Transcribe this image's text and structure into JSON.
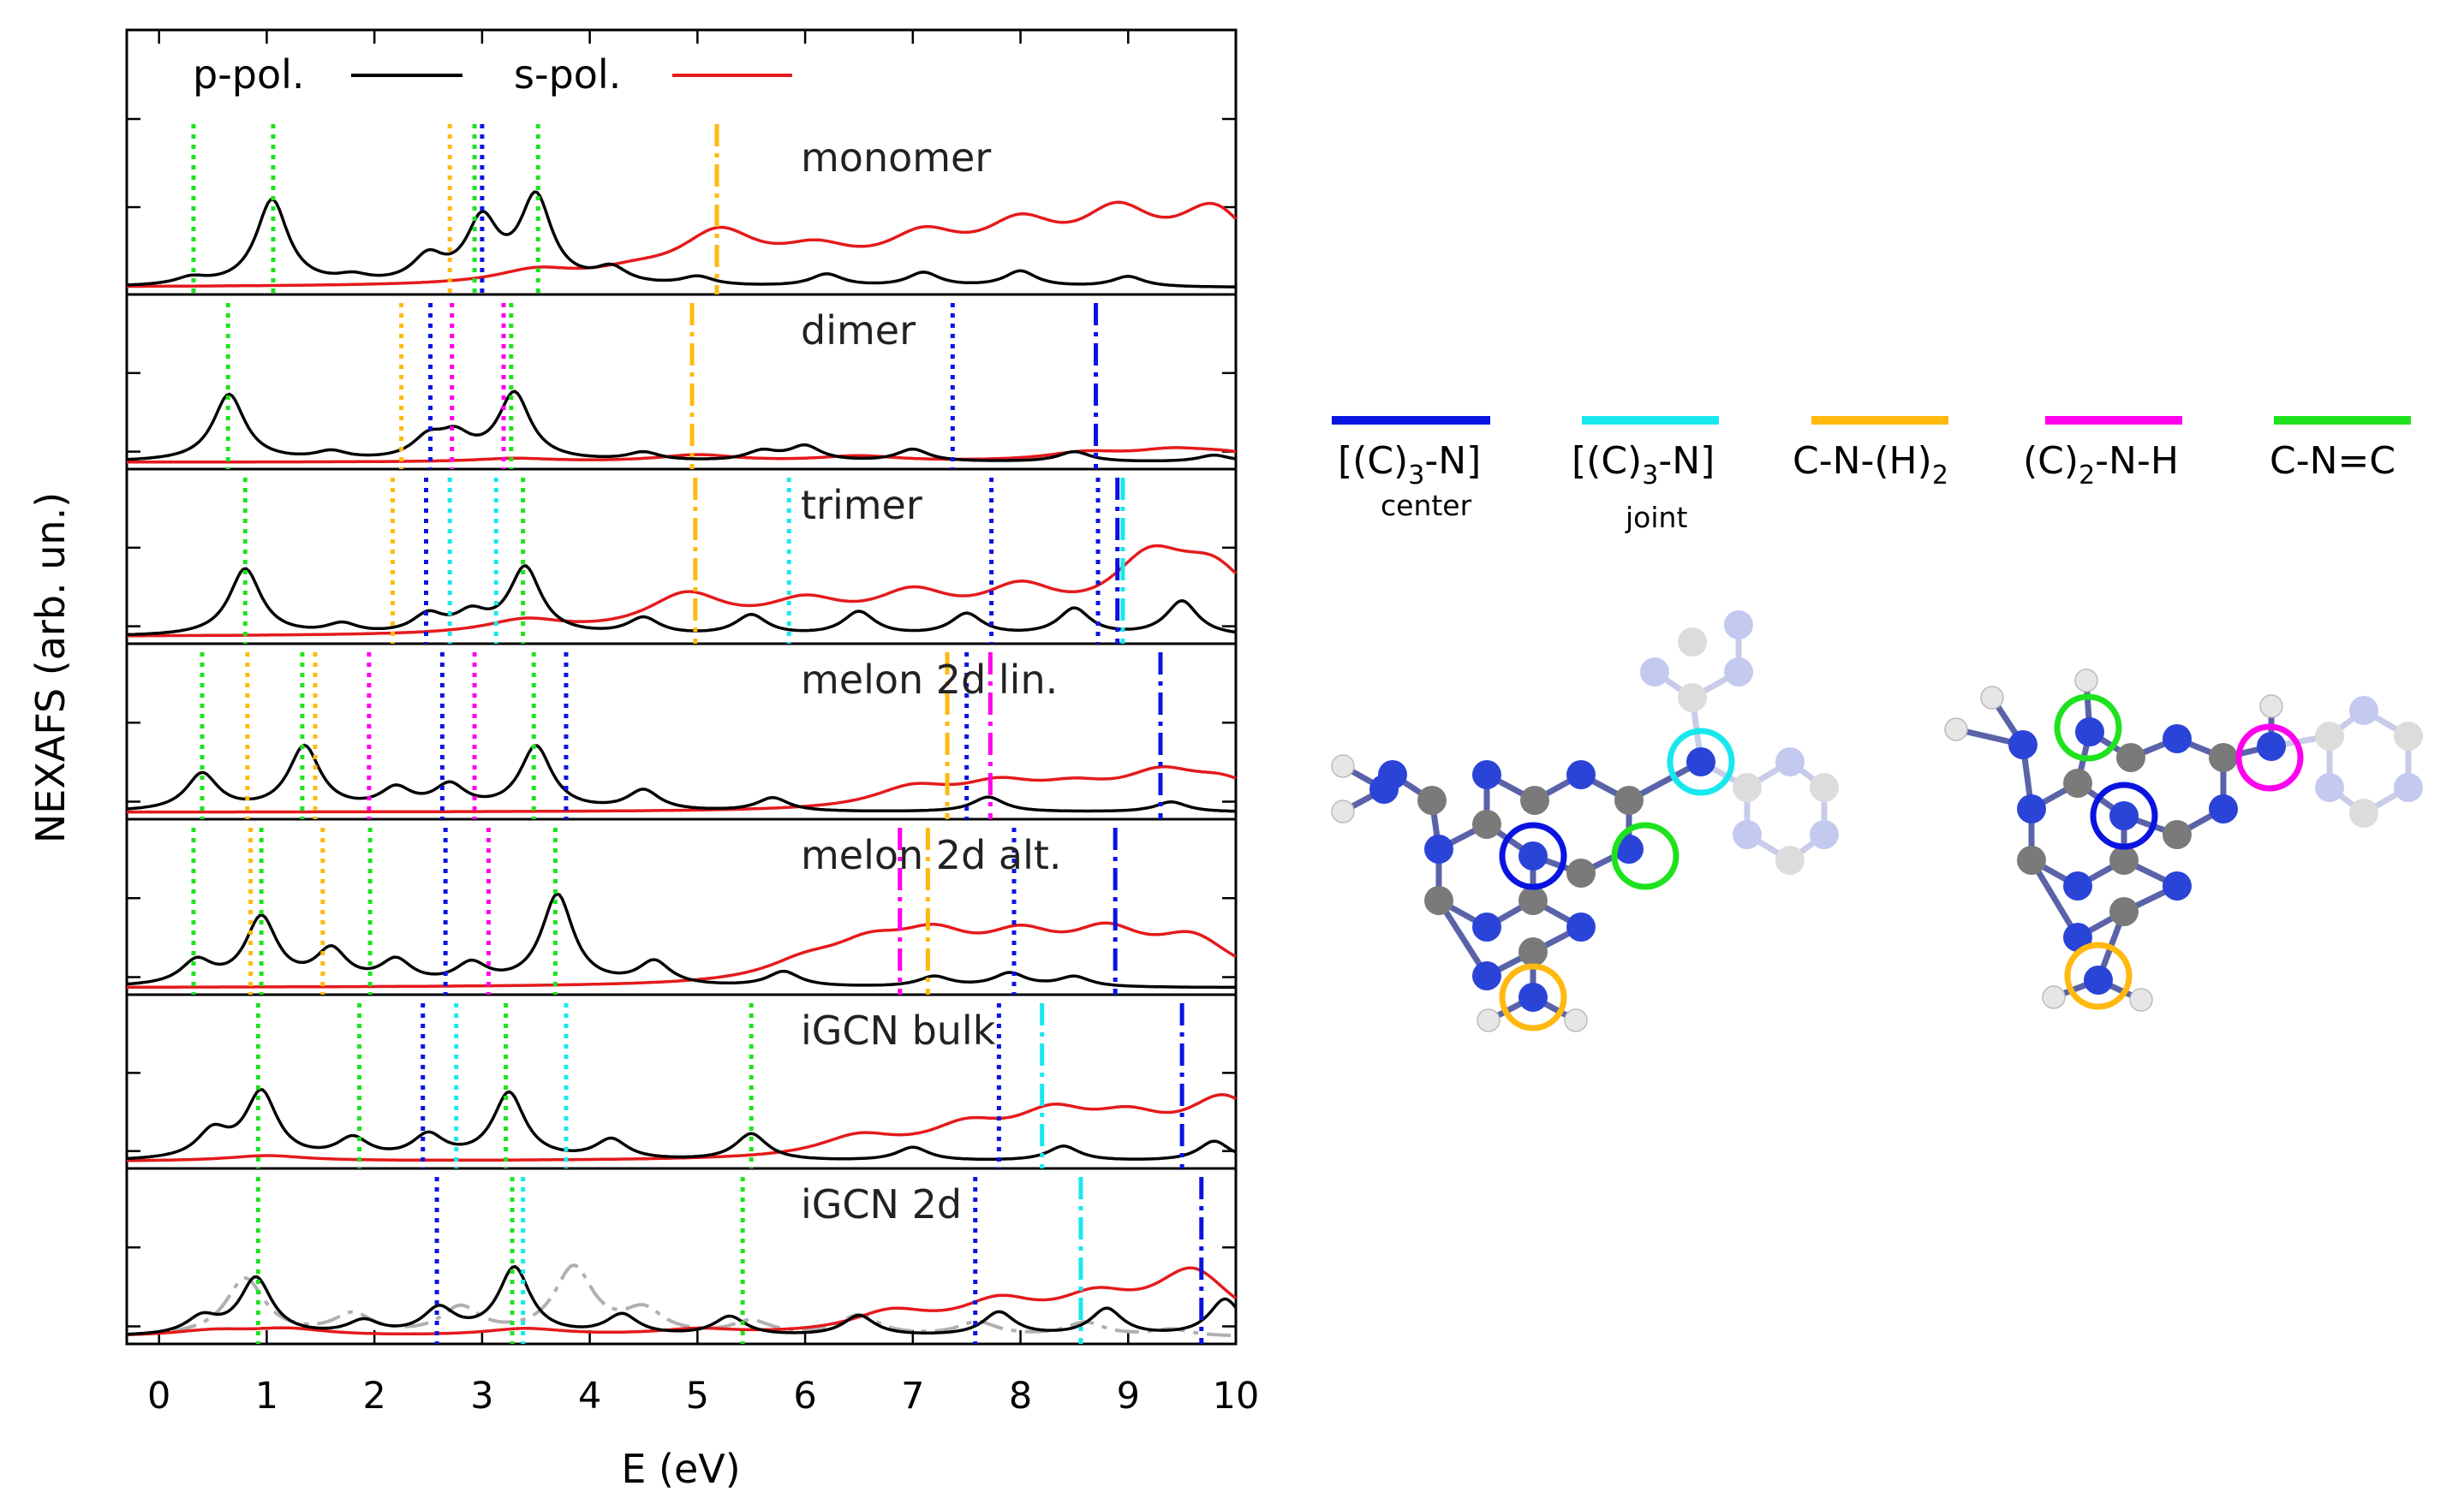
{
  "chart_data": {
    "type": "line",
    "xlabel": "E (eV)",
    "ylabel": "NEXAFS (arb. un.)",
    "xlim": [
      -0.3,
      10
    ],
    "xticks": [
      "0",
      "1",
      "2",
      "3",
      "4",
      "5",
      "6",
      "7",
      "8",
      "9",
      "10"
    ],
    "legend": [
      {
        "name": "p-pol.",
        "color": "#000000"
      },
      {
        "name": "s-pol.",
        "color": "#e41a1c"
      }
    ],
    "panels": [
      {
        "name": "monomer",
        "p_peaks": [
          [
            0.3,
            0.08
          ],
          [
            1.05,
            1.0
          ],
          [
            1.8,
            0.08
          ],
          [
            2.5,
            0.3
          ],
          [
            3.0,
            0.72
          ],
          [
            3.5,
            1.0
          ],
          [
            4.2,
            0.18
          ],
          [
            5.0,
            0.1
          ],
          [
            6.2,
            0.14
          ],
          [
            7.1,
            0.16
          ],
          [
            8.0,
            0.18
          ],
          [
            9.0,
            0.12
          ]
        ],
        "s_peaks": [
          [
            3.5,
            0.15
          ],
          [
            4.4,
            0.1
          ],
          [
            5.2,
            0.55
          ],
          [
            6.1,
            0.3
          ],
          [
            7.1,
            0.45
          ],
          [
            8.0,
            0.55
          ],
          [
            8.9,
            0.68
          ],
          [
            9.8,
            0.78
          ]
        ],
        "markers": [
          {
            "x": 0.32,
            "color": "green",
            "style": "dot"
          },
          {
            "x": 1.06,
            "color": "green",
            "style": "dot"
          },
          {
            "x": 2.7,
            "color": "orange",
            "style": "dot"
          },
          {
            "x": 2.93,
            "color": "green",
            "style": "dot"
          },
          {
            "x": 3.0,
            "color": "blue",
            "style": "dot"
          },
          {
            "x": 3.52,
            "color": "green",
            "style": "dot"
          },
          {
            "x": 5.18,
            "color": "orange",
            "style": "dashdot"
          }
        ]
      },
      {
        "name": "dimer",
        "p_peaks": [
          [
            0.65,
            1.0
          ],
          [
            1.6,
            0.12
          ],
          [
            2.5,
            0.3
          ],
          [
            2.75,
            0.32
          ],
          [
            3.3,
            1.0
          ],
          [
            4.5,
            0.12
          ],
          [
            5.6,
            0.14
          ],
          [
            6.0,
            0.22
          ],
          [
            7.0,
            0.18
          ],
          [
            8.5,
            0.15
          ],
          [
            9.8,
            0.1
          ]
        ],
        "s_peaks": [
          [
            3.3,
            0.05
          ],
          [
            5.0,
            0.1
          ],
          [
            6.5,
            0.08
          ],
          [
            8.6,
            0.12
          ],
          [
            9.4,
            0.14
          ],
          [
            9.9,
            0.1
          ]
        ],
        "markers": [
          {
            "x": 0.64,
            "color": "green",
            "style": "dot"
          },
          {
            "x": 2.25,
            "color": "orange",
            "style": "dot"
          },
          {
            "x": 2.52,
            "color": "blue",
            "style": "dot"
          },
          {
            "x": 2.72,
            "color": "magenta",
            "style": "dot"
          },
          {
            "x": 3.2,
            "color": "magenta",
            "style": "dot"
          },
          {
            "x": 3.27,
            "color": "green",
            "style": "dot"
          },
          {
            "x": 4.95,
            "color": "orange",
            "style": "dashdot"
          },
          {
            "x": 7.37,
            "color": "blue",
            "style": "dot"
          },
          {
            "x": 8.7,
            "color": "blue",
            "style": "dashdot"
          }
        ]
      },
      {
        "name": "trimer",
        "p_peaks": [
          [
            0.8,
            1.0
          ],
          [
            1.7,
            0.15
          ],
          [
            2.5,
            0.28
          ],
          [
            2.9,
            0.28
          ],
          [
            3.4,
            1.0
          ],
          [
            4.5,
            0.25
          ],
          [
            5.5,
            0.3
          ],
          [
            6.5,
            0.35
          ],
          [
            7.5,
            0.32
          ],
          [
            8.5,
            0.4
          ],
          [
            9.5,
            0.52
          ]
        ],
        "s_peaks": [
          [
            3.4,
            0.2
          ],
          [
            4.9,
            0.55
          ],
          [
            6.0,
            0.4
          ],
          [
            7.0,
            0.5
          ],
          [
            8.0,
            0.55
          ],
          [
            9.2,
            0.95
          ],
          [
            9.8,
            0.8
          ]
        ],
        "markers": [
          {
            "x": 0.8,
            "color": "green",
            "style": "dot"
          },
          {
            "x": 2.17,
            "color": "orange",
            "style": "dot"
          },
          {
            "x": 2.48,
            "color": "blue",
            "style": "dot"
          },
          {
            "x": 2.7,
            "color": "cyan",
            "style": "dot"
          },
          {
            "x": 3.13,
            "color": "cyan",
            "style": "dot"
          },
          {
            "x": 3.38,
            "color": "green",
            "style": "dot"
          },
          {
            "x": 4.98,
            "color": "orange",
            "style": "dashdot"
          },
          {
            "x": 5.85,
            "color": "cyan",
            "style": "dot"
          },
          {
            "x": 7.73,
            "color": "blue",
            "style": "dot"
          },
          {
            "x": 8.72,
            "color": "blue",
            "style": "dot"
          },
          {
            "x": 8.9,
            "color": "blue",
            "style": "dashdot"
          },
          {
            "x": 8.95,
            "color": "cyan",
            "style": "dashdot"
          }
        ]
      },
      {
        "name": "melon 2d lin.",
        "p_peaks": [
          [
            0.4,
            0.55
          ],
          [
            1.35,
            0.95
          ],
          [
            2.2,
            0.3
          ],
          [
            2.7,
            0.35
          ],
          [
            3.5,
            0.95
          ],
          [
            4.5,
            0.3
          ],
          [
            5.7,
            0.2
          ],
          [
            7.7,
            0.22
          ],
          [
            9.4,
            0.15
          ]
        ],
        "s_peaks": [
          [
            7.0,
            0.3
          ],
          [
            7.8,
            0.32
          ],
          [
            8.5,
            0.25
          ],
          [
            9.3,
            0.45
          ],
          [
            9.9,
            0.35
          ]
        ],
        "markers": [
          {
            "x": 0.4,
            "color": "green",
            "style": "dot"
          },
          {
            "x": 0.82,
            "color": "orange",
            "style": "dot"
          },
          {
            "x": 1.33,
            "color": "green",
            "style": "dot"
          },
          {
            "x": 1.45,
            "color": "orange",
            "style": "dot"
          },
          {
            "x": 1.95,
            "color": "magenta",
            "style": "dot"
          },
          {
            "x": 2.63,
            "color": "blue",
            "style": "dot"
          },
          {
            "x": 2.93,
            "color": "magenta",
            "style": "dot"
          },
          {
            "x": 3.48,
            "color": "green",
            "style": "dot"
          },
          {
            "x": 3.78,
            "color": "blue",
            "style": "dot"
          },
          {
            "x": 7.32,
            "color": "orange",
            "style": "dashdot"
          },
          {
            "x": 7.5,
            "color": "blue",
            "style": "dot"
          },
          {
            "x": 7.72,
            "color": "magenta",
            "style": "dashdot"
          },
          {
            "x": 9.3,
            "color": "blue",
            "style": "dashdot"
          }
        ]
      },
      {
        "name": "melon 2d alt.",
        "p_peaks": [
          [
            0.35,
            0.35
          ],
          [
            0.95,
            1.0
          ],
          [
            1.6,
            0.5
          ],
          [
            2.2,
            0.35
          ],
          [
            2.9,
            0.3
          ],
          [
            3.7,
            1.35
          ],
          [
            4.6,
            0.35
          ],
          [
            5.8,
            0.22
          ],
          [
            7.2,
            0.15
          ],
          [
            7.9,
            0.2
          ],
          [
            8.5,
            0.15
          ]
        ],
        "s_peaks": [
          [
            6.0,
            0.25
          ],
          [
            6.6,
            0.45
          ],
          [
            7.2,
            0.55
          ],
          [
            8.0,
            0.55
          ],
          [
            8.8,
            0.62
          ],
          [
            9.6,
            0.6
          ]
        ],
        "markers": [
          {
            "x": 0.32,
            "color": "green",
            "style": "dot"
          },
          {
            "x": 0.85,
            "color": "orange",
            "style": "dot"
          },
          {
            "x": 0.95,
            "color": "green",
            "style": "dot"
          },
          {
            "x": 1.52,
            "color": "orange",
            "style": "dot"
          },
          {
            "x": 1.96,
            "color": "green",
            "style": "dot"
          },
          {
            "x": 2.66,
            "color": "blue",
            "style": "dot"
          },
          {
            "x": 3.06,
            "color": "magenta",
            "style": "dot"
          },
          {
            "x": 3.68,
            "color": "green",
            "style": "dot"
          },
          {
            "x": 6.88,
            "color": "magenta",
            "style": "dashdot"
          },
          {
            "x": 7.14,
            "color": "orange",
            "style": "dashdot"
          },
          {
            "x": 7.94,
            "color": "blue",
            "style": "dot"
          },
          {
            "x": 8.88,
            "color": "blue",
            "style": "dashdot"
          }
        ]
      },
      {
        "name": "iGCN bulk",
        "p_peaks": [
          [
            0.5,
            0.4
          ],
          [
            0.95,
            1.0
          ],
          [
            1.8,
            0.3
          ],
          [
            2.5,
            0.35
          ],
          [
            3.25,
            1.0
          ],
          [
            4.2,
            0.3
          ],
          [
            5.5,
            0.4
          ],
          [
            7.0,
            0.2
          ],
          [
            8.4,
            0.22
          ],
          [
            9.8,
            0.3
          ]
        ],
        "s_peaks": [
          [
            1.0,
            0.08
          ],
          [
            6.5,
            0.3
          ],
          [
            7.5,
            0.4
          ],
          [
            8.3,
            0.55
          ],
          [
            9.0,
            0.45
          ],
          [
            9.9,
            0.85
          ]
        ],
        "markers": [
          {
            "x": 0.92,
            "color": "green",
            "style": "dot"
          },
          {
            "x": 1.86,
            "color": "green",
            "style": "dot"
          },
          {
            "x": 2.45,
            "color": "blue",
            "style": "dot"
          },
          {
            "x": 2.76,
            "color": "cyan",
            "style": "dot"
          },
          {
            "x": 3.22,
            "color": "green",
            "style": "dot"
          },
          {
            "x": 3.78,
            "color": "cyan",
            "style": "dot"
          },
          {
            "x": 5.5,
            "color": "green",
            "style": "dot"
          },
          {
            "x": 7.8,
            "color": "blue",
            "style": "dot"
          },
          {
            "x": 8.2,
            "color": "cyan",
            "style": "dashdot"
          },
          {
            "x": 9.5,
            "color": "blue",
            "style": "dashdot"
          }
        ]
      },
      {
        "name": "iGCN 2d",
        "p_peaks": [
          [
            0.4,
            0.25
          ],
          [
            0.9,
            0.85
          ],
          [
            1.9,
            0.2
          ],
          [
            2.6,
            0.38
          ],
          [
            3.3,
            1.0
          ],
          [
            4.3,
            0.3
          ],
          [
            5.3,
            0.28
          ],
          [
            6.5,
            0.3
          ],
          [
            7.8,
            0.35
          ],
          [
            8.8,
            0.4
          ],
          [
            9.9,
            0.55
          ]
        ],
        "s_peaks": [
          [
            0.5,
            0.08
          ],
          [
            1.2,
            0.1
          ],
          [
            3.4,
            0.1
          ],
          [
            5.0,
            0.08
          ],
          [
            6.8,
            0.3
          ],
          [
            7.8,
            0.42
          ],
          [
            8.7,
            0.45
          ],
          [
            9.6,
            0.9
          ]
        ],
        "ref_peaks": [
          [
            0.8,
            0.85
          ],
          [
            1.8,
            0.3
          ],
          [
            2.8,
            0.4
          ],
          [
            3.85,
            1.0
          ],
          [
            4.5,
            0.35
          ],
          [
            5.5,
            0.2
          ],
          [
            6.5,
            0.3
          ],
          [
            7.6,
            0.2
          ],
          [
            8.6,
            0.2
          ],
          [
            9.4,
            0.1
          ]
        ],
        "markers": [
          {
            "x": 0.92,
            "color": "green",
            "style": "dot"
          },
          {
            "x": 2.58,
            "color": "blue",
            "style": "dot"
          },
          {
            "x": 3.28,
            "color": "green",
            "style": "dot"
          },
          {
            "x": 3.38,
            "color": "cyan",
            "style": "dot"
          },
          {
            "x": 5.42,
            "color": "green",
            "style": "dot"
          },
          {
            "x": 7.58,
            "color": "blue",
            "style": "dot"
          },
          {
            "x": 8.56,
            "color": "cyan",
            "style": "dashdot"
          },
          {
            "x": 9.68,
            "color": "blue",
            "style": "dashdot"
          }
        ]
      }
    ]
  },
  "key": [
    {
      "label": "[(C)3-N]",
      "sub": "center",
      "color": "#0a14e0"
    },
    {
      "label": "[(C)3-N]",
      "sub": "joint",
      "color": "#18e8ee"
    },
    {
      "label": "C-N-(H)2",
      "sub": "",
      "color": "#ffb90f"
    },
    {
      "label": "(C)2-N-H",
      "sub": "",
      "color": "#ff00ee"
    },
    {
      "label": "C-N=C",
      "sub": "",
      "color": "#1fe21f"
    }
  ],
  "colors": {
    "green": "#1fe21f",
    "blue": "#0a14e0",
    "cyan": "#18e8ee",
    "orange": "#ffb90f",
    "magenta": "#ff00ee",
    "red": "#e41a1c",
    "black": "#000000",
    "gray": "#b0b0b0"
  }
}
